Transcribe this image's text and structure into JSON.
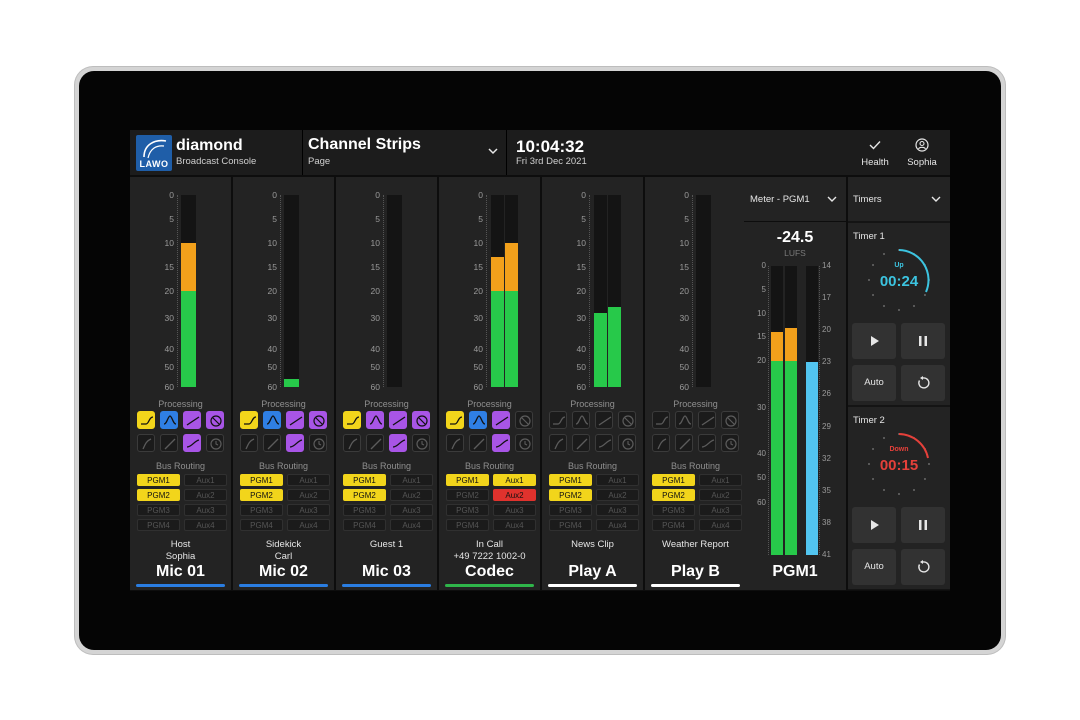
{
  "header": {
    "brand_name": "diamond",
    "brand_sub": "Broadcast Console",
    "logo_text": "LAWO",
    "page_title": "Channel Strips",
    "page_sub": "Page",
    "clock": "10:04:32",
    "date": "Fri 3rd Dec 2021",
    "health_label": "Health",
    "user_label": "Sophia"
  },
  "meter_scale": [
    "0",
    "5",
    "10",
    "15",
    "20",
    "30",
    "40",
    "50",
    "60"
  ],
  "labels": {
    "processing": "Processing",
    "bus_routing": "Bus Routing"
  },
  "routing_labels": [
    "PGM1",
    "Aux1",
    "PGM2",
    "Aux2",
    "PGM3",
    "Aux3",
    "PGM4",
    "Aux4"
  ],
  "channels": [
    {
      "line1": "Host",
      "line2": "Sophia",
      "name": "Mic 01",
      "accent": "#2a7de1",
      "levels_db": [
        10
      ],
      "processing": [
        "yellow",
        "blue",
        "purple",
        "purple",
        "off",
        "off",
        "purple",
        "off"
      ],
      "routing": [
        "on",
        "off",
        "on",
        "off",
        "off",
        "off",
        "off",
        "off"
      ]
    },
    {
      "line1": "Sidekick",
      "line2": "Carl",
      "name": "Mic 02",
      "accent": "#2a7de1",
      "levels_db": [
        56
      ],
      "processing": [
        "yellow",
        "blue",
        "purple",
        "purple",
        "off",
        "off",
        "purple",
        "off"
      ],
      "routing": [
        "on",
        "off",
        "on",
        "off",
        "off",
        "off",
        "off",
        "off"
      ]
    },
    {
      "line1": "Guest 1",
      "line2": "",
      "name": "Mic 03",
      "accent": "#2a7de1",
      "levels_db": [],
      "processing": [
        "yellow",
        "purple",
        "purple",
        "purple",
        "off",
        "off",
        "purple",
        "off"
      ],
      "routing": [
        "on",
        "off",
        "on",
        "off",
        "off",
        "off",
        "off",
        "off"
      ]
    },
    {
      "line1": "In Call",
      "line2": "+49 7222 1002-0",
      "name": "Codec",
      "accent": "#2fb54a",
      "levels_db": [
        13,
        10
      ],
      "processing": [
        "yellow",
        "blue",
        "purple",
        "off",
        "off",
        "off",
        "purple",
        "off"
      ],
      "routing": [
        "on",
        "on",
        "off",
        "red",
        "off",
        "off",
        "off",
        "off"
      ]
    },
    {
      "line1": "News Clip",
      "line2": "",
      "name": "Play A",
      "accent": "#ffffff",
      "levels_db": [
        28,
        26
      ],
      "processing": [
        "off",
        "off",
        "off",
        "off",
        "off",
        "off",
        "off",
        "off"
      ],
      "routing": [
        "on",
        "off",
        "on",
        "off",
        "off",
        "off",
        "off",
        "off"
      ]
    },
    {
      "line1": "Weather Report",
      "line2": "",
      "name": "Play B",
      "accent": "#ffffff",
      "levels_db": [],
      "processing": [
        "off",
        "off",
        "off",
        "off",
        "off",
        "off",
        "off",
        "off"
      ],
      "routing": [
        "on",
        "off",
        "on",
        "off",
        "off",
        "off",
        "off",
        "off"
      ]
    }
  ],
  "meter_panel": {
    "title": "Meter - PGM1",
    "lufs_value": "-24.5",
    "lufs_unit": "LUFS",
    "name": "PGM1",
    "left_scale": [
      "0",
      "5",
      "10",
      "15",
      "20",
      "30",
      "40",
      "50",
      "60"
    ],
    "right_scale": [
      "14",
      "17",
      "20",
      "23",
      "26",
      "29",
      "32",
      "35",
      "38",
      "41"
    ],
    "levels_db": [
      14,
      13
    ],
    "loudness_lu": 23
  },
  "timers": {
    "title": "Timers",
    "items": [
      {
        "name": "Timer 1",
        "direction": "Up",
        "time": "00:24",
        "color": "#3cc4e0",
        "auto_label": "Auto"
      },
      {
        "name": "Timer 2",
        "direction": "Down",
        "time": "00:15",
        "color": "#e5403a",
        "auto_label": "Auto"
      }
    ]
  },
  "colors": {
    "green": "#27c94a",
    "orange": "#f2a01b",
    "cyan": "#52c5f0",
    "yellow": "#f2d51b",
    "blue": "#2f7fe4",
    "purple": "#a855e6",
    "red": "#e0322d"
  }
}
